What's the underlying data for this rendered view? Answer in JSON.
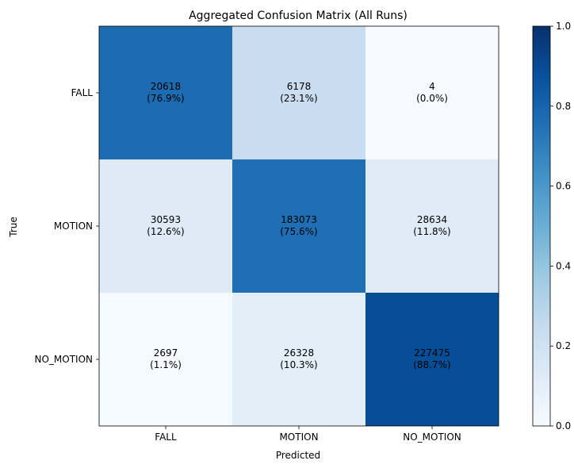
{
  "chart_data": {
    "type": "heatmap",
    "title": "Aggregated Confusion Matrix (All Runs)",
    "xlabel": "Predicted",
    "ylabel": "True",
    "x_categories": [
      "FALL",
      "MOTION",
      "NO_MOTION"
    ],
    "y_categories": [
      "FALL",
      "MOTION",
      "NO_MOTION"
    ],
    "counts": [
      [
        20618,
        6178,
        4
      ],
      [
        30593,
        183073,
        28634
      ],
      [
        2697,
        26328,
        227475
      ]
    ],
    "percent_labels": [
      [
        "(76.9%)",
        "(23.1%)",
        "(0.0%)"
      ],
      [
        "(12.6%)",
        "(75.6%)",
        "(11.8%)"
      ],
      [
        "(1.1%)",
        "(10.3%)",
        "(88.7%)"
      ]
    ],
    "normalized": [
      [
        0.769,
        0.231,
        0.0
      ],
      [
        0.126,
        0.756,
        0.118
      ],
      [
        0.011,
        0.103,
        0.887
      ]
    ],
    "colormap": "Blues",
    "colorbar": {
      "range": [
        0.0,
        1.0
      ],
      "ticks": [
        "0.0",
        "0.2",
        "0.4",
        "0.6",
        "0.8",
        "1.0"
      ]
    },
    "grid": false
  }
}
